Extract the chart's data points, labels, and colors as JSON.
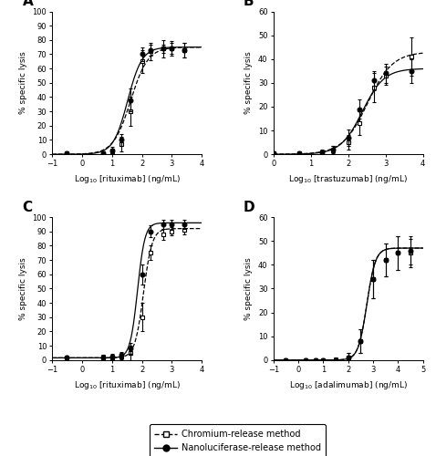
{
  "panel_A": {
    "label": "A",
    "xlabel": "Log$_{10}$ [rituximab] (ng/mL)",
    "ylabel": "% specific lysis",
    "xlim": [
      -1,
      4
    ],
    "ylim": [
      0,
      100
    ],
    "xticks": [
      -1,
      0,
      1,
      2,
      3,
      4
    ],
    "yticks": [
      0,
      10,
      20,
      30,
      40,
      50,
      60,
      70,
      80,
      90,
      100
    ],
    "cr_x": [
      -0.52,
      0.7,
      1.0,
      1.3,
      1.6,
      2.0,
      2.3,
      2.7,
      3.0,
      3.4
    ],
    "cr_y": [
      0.5,
      0.5,
      2.0,
      7.0,
      30.0,
      65.0,
      72.0,
      74.0,
      74.0,
      73.0
    ],
    "cr_yerr": [
      0.5,
      0.5,
      2.0,
      5.0,
      10.0,
      8.0,
      6.0,
      6.0,
      5.0,
      5.0
    ],
    "nano_x": [
      -0.52,
      0.7,
      1.0,
      1.3,
      1.6,
      2.0,
      2.3,
      2.7,
      3.0,
      3.4
    ],
    "nano_y": [
      0.5,
      0.5,
      2.5,
      10.0,
      38.0,
      70.0,
      73.0,
      74.0,
      74.0,
      73.0
    ],
    "nano_yerr": [
      0.5,
      0.5,
      2.5,
      4.0,
      8.0,
      5.0,
      4.0,
      3.0,
      4.0,
      5.0
    ],
    "nano_fit_ec50": 1.52,
    "cr_fit_ec50": 1.62,
    "nano_fit_hill": 1.8,
    "cr_fit_hill": 1.5,
    "fit_top_cr": 75.0,
    "fit_top_nano": 75.0,
    "fit_bottom": 0.0
  },
  "panel_B": {
    "label": "B",
    "xlabel": "Log$_{10}$ [trastuzumab] (ng/mL)",
    "ylabel": "% specific lysis",
    "xlim": [
      0,
      4
    ],
    "ylim": [
      0,
      60
    ],
    "xticks": [
      0,
      1,
      2,
      3,
      4
    ],
    "yticks": [
      0,
      10,
      20,
      30,
      40,
      50,
      60
    ],
    "cr_x": [
      0.0,
      0.7,
      1.3,
      1.6,
      2.0,
      2.3,
      2.7,
      3.0,
      3.7
    ],
    "cr_y": [
      0.5,
      0.5,
      0.8,
      1.5,
      5.0,
      13.0,
      28.0,
      33.0,
      41.0
    ],
    "cr_yerr": [
      0.3,
      0.5,
      1.0,
      2.0,
      3.0,
      5.0,
      6.0,
      4.0,
      8.0
    ],
    "nano_x": [
      0.0,
      0.7,
      1.3,
      1.6,
      2.0,
      2.3,
      2.7,
      3.0,
      3.7
    ],
    "nano_y": [
      0.5,
      0.5,
      0.8,
      2.0,
      7.0,
      19.0,
      31.0,
      34.0,
      35.0
    ],
    "nano_yerr": [
      0.3,
      0.4,
      0.8,
      1.5,
      3.5,
      4.0,
      4.0,
      4.0,
      5.0
    ],
    "nano_fit_ec50": 2.38,
    "cr_fit_ec50": 2.52,
    "nano_fit_hill": 1.5,
    "cr_fit_hill": 1.3,
    "fit_top_cr": 43.0,
    "fit_top_nano": 36.0,
    "fit_bottom": 0.0
  },
  "panel_C": {
    "label": "C",
    "xlabel": "Log$_{10}$ [rituximab] (ng/mL)",
    "ylabel": "% specific lysis",
    "xlim": [
      -1,
      4
    ],
    "ylim": [
      0,
      100
    ],
    "xticks": [
      -1,
      0,
      1,
      2,
      3,
      4
    ],
    "yticks": [
      0,
      10,
      20,
      30,
      40,
      50,
      60,
      70,
      80,
      90,
      100
    ],
    "cr_x": [
      -0.52,
      0.7,
      1.0,
      1.3,
      1.6,
      2.0,
      2.3,
      2.7,
      3.0,
      3.4
    ],
    "cr_y": [
      2.0,
      2.0,
      2.0,
      2.5,
      5.0,
      30.0,
      75.0,
      88.0,
      90.0,
      91.0
    ],
    "cr_yerr": [
      1.0,
      1.5,
      1.5,
      2.0,
      5.0,
      10.0,
      5.0,
      4.0,
      3.0,
      3.0
    ],
    "nano_x": [
      -0.52,
      0.7,
      1.0,
      1.3,
      1.6,
      2.0,
      2.3,
      2.7,
      3.0,
      3.4
    ],
    "nano_y": [
      2.0,
      2.0,
      2.5,
      3.5,
      8.0,
      60.0,
      90.0,
      95.0,
      95.0,
      95.0
    ],
    "nano_yerr": [
      1.0,
      1.5,
      1.5,
      2.0,
      4.0,
      7.0,
      4.0,
      3.0,
      3.0,
      3.0
    ],
    "nano_fit_ec50": 1.85,
    "cr_fit_ec50": 2.05,
    "nano_fit_hill": 3.5,
    "cr_fit_hill": 3.0,
    "fit_top_cr": 92.0,
    "fit_top_nano": 96.0,
    "fit_bottom": 1.5
  },
  "panel_D": {
    "label": "D",
    "xlabel": "Log$_{10}$ [adalimumab] (ng/mL)",
    "ylabel": "% specific lysis",
    "xlim": [
      -1,
      5
    ],
    "ylim": [
      0,
      60
    ],
    "xticks": [
      -1,
      0,
      1,
      2,
      3,
      4,
      5
    ],
    "yticks": [
      0,
      10,
      20,
      30,
      40,
      50,
      60
    ],
    "cr_x": [
      -0.52,
      0.3,
      0.7,
      1.0,
      1.5,
      2.0,
      2.5,
      3.0,
      3.5,
      4.0,
      4.5
    ],
    "cr_y": [
      0.0,
      0.0,
      0.0,
      0.0,
      0.0,
      1.0,
      8.0,
      34.0,
      42.0,
      45.0,
      45.0
    ],
    "cr_yerr": [
      0.5,
      0.5,
      0.5,
      0.5,
      1.0,
      2.0,
      5.0,
      8.0,
      7.0,
      7.0,
      6.0
    ],
    "nano_x": [
      -0.52,
      0.3,
      0.7,
      1.0,
      1.5,
      2.0,
      2.5,
      3.0,
      3.5,
      4.0,
      4.5
    ],
    "nano_y": [
      0.0,
      0.0,
      0.0,
      0.0,
      0.0,
      1.0,
      8.0,
      34.0,
      42.0,
      45.0,
      46.0
    ],
    "nano_yerr": [
      0.5,
      0.5,
      0.5,
      0.5,
      1.0,
      2.0,
      5.0,
      8.0,
      7.0,
      7.0,
      6.0
    ],
    "nano_fit_ec50": 2.75,
    "cr_fit_ec50": 2.75,
    "nano_fit_hill": 2.5,
    "cr_fit_hill": 2.5,
    "fit_top_cr": 47.0,
    "fit_top_nano": 47.0,
    "fit_bottom": 0.0
  },
  "legend": {
    "chromium_label": "Chromium-release method",
    "nano_label": "Nanoluciferase-release method"
  }
}
